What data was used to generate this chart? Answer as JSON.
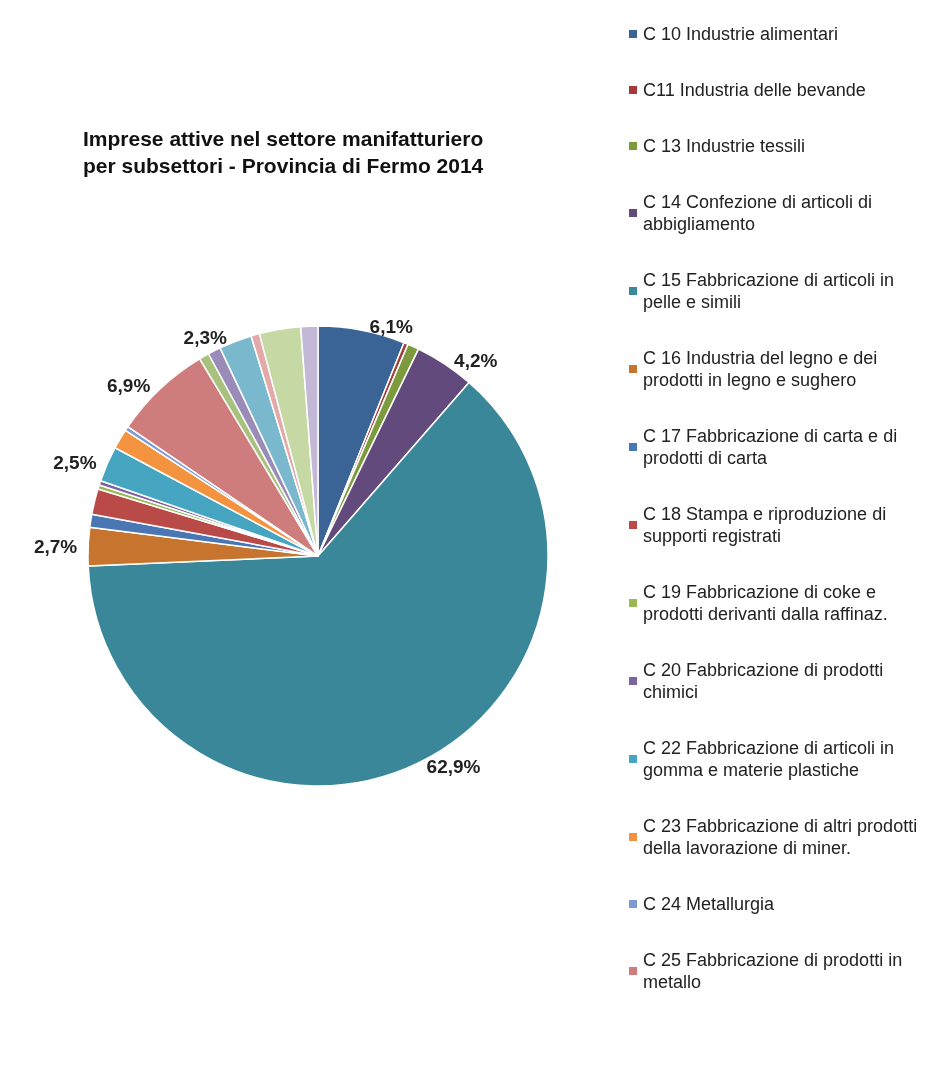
{
  "chart_data": {
    "type": "pie",
    "title": "Imprese attive nel settore manifatturiero\nper subsettori - Provincia di Fermo 2014",
    "categories": [
      "C 10 Industrie alimentari",
      "C11 Industria delle bevande",
      "C 13 Industrie tessili",
      "C 14 Confezione di articoli di abbigliamento",
      "C 15 Fabbricazione di articoli in pelle e simili",
      "C 16 Industria del legno e dei prodotti in legno e sughero",
      "C 17 Fabbricazione di carta e di prodotti di carta",
      "C 18 Stampa e riproduzione di supporti registrati",
      "C 19 Fabbricazione di coke e prodotti derivanti dalla raffinaz.",
      "C 20 Fabbricazione di prodotti chimici",
      "C 22 Fabbricazione di articoli in gomma e materie plastiche",
      "C 23 Fabbricazione di altri prodotti della lavorazione di miner.",
      "C 24 Metallurgia",
      "C 25 Fabbricazione di prodotti in metallo",
      null,
      null,
      null,
      null,
      null,
      null
    ],
    "values": [
      6.1,
      0.3,
      0.8,
      4.2,
      62.9,
      2.7,
      0.9,
      1.8,
      0.3,
      0.3,
      2.5,
      1.4,
      0.3,
      6.9,
      0.7,
      0.9,
      2.3,
      0.6,
      2.9,
      1.2
    ],
    "value_labels": [
      "6,1%",
      null,
      null,
      "4,2%",
      "62,9%",
      "2,7%",
      null,
      null,
      null,
      null,
      "2,5%",
      null,
      null,
      "6,9%",
      null,
      null,
      "2,3%",
      null,
      null,
      null
    ],
    "colors": [
      "#3a6496",
      "#a33b3a",
      "#7c9b3c",
      "#624a7c",
      "#3a8799",
      "#c7742e",
      "#4a76b3",
      "#b94a48",
      "#98b955",
      "#7e62a1",
      "#46a5c1",
      "#f39340",
      "#7f9bd0",
      "#cf7d7c",
      "#a8c27e",
      "#9b8bb8",
      "#7ab8ce",
      "#e3a9a8",
      "#c6d9a5",
      "#c3b9d6"
    ],
    "legend": "right"
  }
}
